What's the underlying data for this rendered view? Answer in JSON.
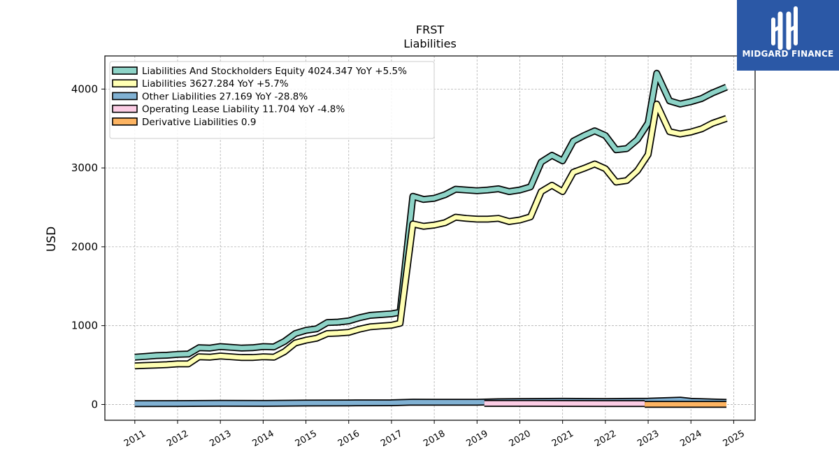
{
  "chart_data": {
    "type": "line",
    "title": "FRST",
    "subtitle": "Liabilities",
    "ylabel": "USD",
    "xlabel": "",
    "xlim": [
      2010.3,
      2025.5
    ],
    "ylim": [
      -200,
      4420
    ],
    "yticks": [
      0,
      1000,
      2000,
      3000,
      4000
    ],
    "xticks": [
      "2011",
      "2012",
      "2013",
      "2014",
      "2015",
      "2016",
      "2017",
      "2018",
      "2019",
      "2020",
      "2021",
      "2022",
      "2023",
      "2024",
      "2025"
    ],
    "grid": true,
    "legend_position": "top-left",
    "series": [
      {
        "name": "Liabilities And Stockholders Equity",
        "legend": "Liabilities And Stockholders Equity  4024.347 YoY +5.5%",
        "color": "#8dd3c7",
        "x": [
          2011.0,
          2011.25,
          2011.5,
          2011.75,
          2012.0,
          2012.25,
          2012.5,
          2012.75,
          2013.0,
          2013.25,
          2013.5,
          2013.75,
          2014.0,
          2014.25,
          2014.5,
          2014.75,
          2015.0,
          2015.25,
          2015.5,
          2015.75,
          2016.0,
          2016.25,
          2016.5,
          2016.75,
          2017.0,
          2017.2,
          2017.5,
          2017.75,
          2018.0,
          2018.25,
          2018.5,
          2018.75,
          2019.0,
          2019.25,
          2019.5,
          2019.75,
          2020.0,
          2020.25,
          2020.5,
          2020.75,
          2021.0,
          2021.25,
          2021.5,
          2021.75,
          2022.0,
          2022.25,
          2022.5,
          2022.75,
          2023.0,
          2023.2,
          2023.5,
          2023.75,
          2024.0,
          2024.25,
          2024.5,
          2024.83
        ],
        "y": [
          600,
          610,
          620,
          625,
          635,
          640,
          720,
          715,
          735,
          725,
          715,
          720,
          735,
          730,
          800,
          900,
          940,
          960,
          1040,
          1045,
          1060,
          1100,
          1130,
          1140,
          1150,
          1170,
          2640,
          2600,
          2615,
          2660,
          2730,
          2720,
          2710,
          2720,
          2735,
          2700,
          2720,
          2760,
          3075,
          3160,
          3090,
          3340,
          3410,
          3470,
          3410,
          3230,
          3245,
          3360,
          3570,
          4200,
          3850,
          3810,
          3840,
          3880,
          3950,
          4024.347
        ]
      },
      {
        "name": "Liabilities",
        "legend": "Liabilities  3627.284 YoY +5.7%",
        "color": "#ffffb3",
        "x": [
          2011.0,
          2011.25,
          2011.5,
          2011.75,
          2012.0,
          2012.25,
          2012.5,
          2012.75,
          2013.0,
          2013.25,
          2013.5,
          2013.75,
          2014.0,
          2014.25,
          2014.5,
          2014.75,
          2015.0,
          2015.25,
          2015.5,
          2015.75,
          2016.0,
          2016.25,
          2016.5,
          2016.75,
          2017.0,
          2017.2,
          2017.5,
          2017.75,
          2018.0,
          2018.25,
          2018.5,
          2018.75,
          2019.0,
          2019.25,
          2019.5,
          2019.75,
          2020.0,
          2020.25,
          2020.5,
          2020.75,
          2021.0,
          2021.25,
          2021.5,
          2021.75,
          2022.0,
          2022.25,
          2022.5,
          2022.75,
          2023.0,
          2023.2,
          2023.5,
          2023.75,
          2024.0,
          2024.25,
          2024.5,
          2024.83
        ],
        "y": [
          490,
          495,
          500,
          505,
          515,
          515,
          605,
          600,
          615,
          605,
          595,
          595,
          605,
          600,
          670,
          780,
          815,
          840,
          900,
          905,
          915,
          955,
          985,
          995,
          1005,
          1030,
          2290,
          2260,
          2275,
          2305,
          2375,
          2360,
          2350,
          2350,
          2360,
          2320,
          2340,
          2380,
          2700,
          2780,
          2700,
          2945,
          2995,
          3050,
          2990,
          2820,
          2840,
          2965,
          3170,
          3810,
          3460,
          3430,
          3455,
          3495,
          3565,
          3627.284
        ]
      },
      {
        "name": "Other Liabilities",
        "legend": "Other Liabilities  27.169 YoY -28.8%",
        "color": "#80b1d3",
        "x": [
          2011.0,
          2012.0,
          2013.0,
          2014.0,
          2015.0,
          2016.0,
          2017.0,
          2017.5,
          2018.0,
          2019.0,
          2019.5,
          2020.0,
          2021.0,
          2022.0,
          2023.0,
          2023.75,
          2024.0,
          2024.83
        ],
        "y": [
          10,
          12,
          15,
          14,
          18,
          20,
          22,
          30,
          28,
          28,
          35,
          38,
          40,
          38,
          42,
          55,
          40,
          27.169
        ]
      },
      {
        "name": "Operating Lease Liability",
        "legend": "Operating Lease Liability  11.704 YoY -4.8%",
        "color": "#fccde5",
        "x": [
          2019.17,
          2020.0,
          2021.0,
          2022.0,
          2022.92
        ],
        "y": [
          14,
          13.5,
          13,
          12.3,
          11.704
        ]
      },
      {
        "name": "Derivative Liabilities",
        "legend": "Derivative Liabilities  0.9",
        "color": "#fdb462",
        "x": [
          2022.92,
          2023.5,
          2024.0,
          2024.83
        ],
        "y": [
          0.9,
          0.9,
          0.9,
          0.9
        ]
      }
    ]
  },
  "brand": {
    "name": "MIDGARD FINANCE",
    "color": "#2b58a6"
  }
}
